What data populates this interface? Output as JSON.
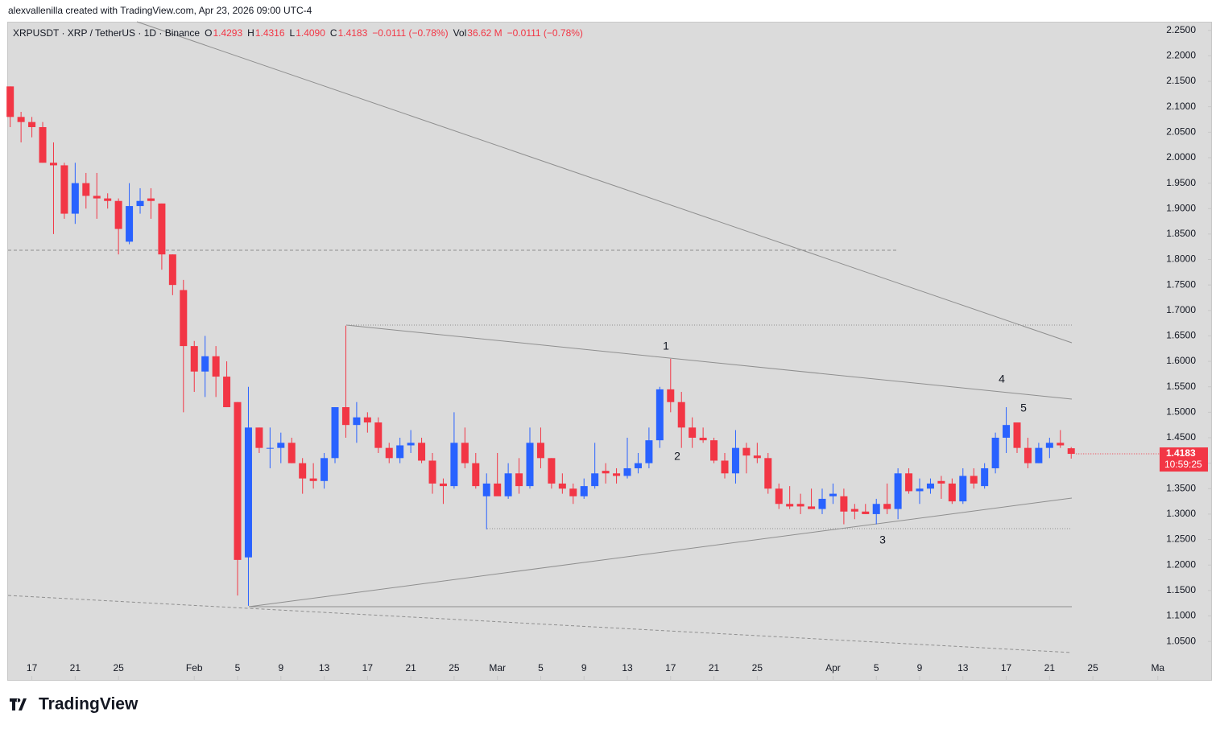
{
  "header": {
    "credit": "alexvallenilla created with TradingView.com, Apr 23, 2026 09:00 UTC-4"
  },
  "footer": {
    "logo": "TradingView"
  },
  "chart_data": {
    "type": "candlestick",
    "legend": {
      "symbol": "XRPUSDT · XRP / TetherUS · 1D · Binance",
      "fields": [
        {
          "key": "O",
          "value": "1.4293"
        },
        {
          "key": "H",
          "value": "1.4316"
        },
        {
          "key": "L",
          "value": "1.4090"
        },
        {
          "key": "C",
          "value": "1.4183"
        },
        {
          "key": "",
          "value": "−0.0111 (−0.78%)"
        },
        {
          "key": "Vol",
          "value": "36.62 M"
        },
        {
          "key": "",
          "value": "−0.0111 (−0.78%)"
        }
      ]
    },
    "up_color": "#2962ff",
    "down_color": "#f23645",
    "candles": {
      "open": [
        2.14,
        2.08,
        2.07,
        2.06,
        1.99,
        1.985,
        1.89,
        1.95,
        1.925,
        1.92,
        1.915,
        1.835,
        1.905,
        1.92,
        1.91,
        1.81,
        1.74,
        1.63,
        1.58,
        1.61,
        1.57,
        1.52,
        1.215,
        1.47,
        1.43,
        1.43,
        1.44,
        1.4,
        1.37,
        1.365,
        1.41,
        1.51,
        1.475,
        1.49,
        1.48,
        1.43,
        1.41,
        1.435,
        1.44,
        1.405,
        1.36,
        1.355,
        1.44,
        1.4,
        1.335,
        1.36,
        1.335,
        1.38,
        1.355,
        1.44,
        1.41,
        1.36,
        1.35,
        1.335,
        1.355,
        1.385,
        1.38,
        1.375,
        1.39,
        1.4,
        1.445,
        1.545,
        1.52,
        1.47,
        1.45,
        1.445,
        1.405,
        1.38,
        1.43,
        1.415,
        1.41,
        1.35,
        1.32,
        1.32,
        1.315,
        1.31,
        1.335,
        1.335,
        1.31,
        1.305,
        1.3,
        1.32,
        1.31,
        1.38,
        1.345,
        1.35,
        1.365,
        1.36,
        1.325,
        1.375,
        1.355,
        1.39,
        1.45,
        1.48,
        1.43,
        1.4,
        1.43,
        1.44,
        1.4293
      ],
      "high": [
        2.14,
        2.09,
        2.08,
        2.07,
        2.03,
        1.99,
        1.99,
        1.97,
        1.97,
        1.93,
        1.92,
        1.95,
        1.94,
        1.94,
        1.91,
        1.81,
        1.76,
        1.64,
        1.65,
        1.63,
        1.6,
        1.52,
        1.55,
        1.47,
        1.47,
        1.46,
        1.45,
        1.41,
        1.4,
        1.42,
        1.51,
        1.67,
        1.52,
        1.5,
        1.49,
        1.44,
        1.45,
        1.465,
        1.45,
        1.42,
        1.37,
        1.5,
        1.47,
        1.42,
        1.38,
        1.42,
        1.4,
        1.41,
        1.47,
        1.47,
        1.41,
        1.38,
        1.36,
        1.37,
        1.44,
        1.4,
        1.39,
        1.45,
        1.42,
        1.47,
        1.55,
        1.605,
        1.54,
        1.49,
        1.47,
        1.45,
        1.42,
        1.465,
        1.44,
        1.44,
        1.42,
        1.36,
        1.355,
        1.34,
        1.35,
        1.35,
        1.36,
        1.35,
        1.32,
        1.32,
        1.33,
        1.36,
        1.39,
        1.39,
        1.37,
        1.37,
        1.375,
        1.37,
        1.39,
        1.39,
        1.4,
        1.46,
        1.51,
        1.48,
        1.45,
        1.44,
        1.45,
        1.465,
        1.4316
      ],
      "low": [
        2.06,
        2.03,
        2.04,
        1.99,
        1.85,
        1.88,
        1.87,
        1.9,
        1.88,
        1.9,
        1.81,
        1.83,
        1.89,
        1.88,
        1.78,
        1.73,
        1.5,
        1.54,
        1.53,
        1.53,
        1.51,
        1.14,
        1.12,
        1.42,
        1.39,
        1.4,
        1.4,
        1.34,
        1.35,
        1.35,
        1.4,
        1.45,
        1.44,
        1.46,
        1.42,
        1.4,
        1.4,
        1.42,
        1.4,
        1.34,
        1.32,
        1.35,
        1.39,
        1.35,
        1.27,
        1.34,
        1.33,
        1.34,
        1.35,
        1.39,
        1.35,
        1.34,
        1.32,
        1.33,
        1.35,
        1.36,
        1.36,
        1.37,
        1.38,
        1.39,
        1.43,
        1.5,
        1.43,
        1.43,
        1.44,
        1.4,
        1.37,
        1.36,
        1.38,
        1.4,
        1.34,
        1.31,
        1.31,
        1.3,
        1.31,
        1.3,
        1.32,
        1.28,
        1.29,
        1.3,
        1.28,
        1.3,
        1.29,
        1.34,
        1.32,
        1.34,
        1.33,
        1.32,
        1.32,
        1.35,
        1.35,
        1.38,
        1.42,
        1.42,
        1.39,
        1.4,
        1.41,
        1.43,
        1.409
      ],
      "close": [
        2.08,
        2.07,
        2.06,
        1.99,
        1.985,
        1.89,
        1.95,
        1.925,
        1.92,
        1.915,
        1.86,
        1.905,
        1.915,
        1.915,
        1.81,
        1.75,
        1.63,
        1.58,
        1.61,
        1.57,
        1.51,
        1.21,
        1.47,
        1.43,
        1.43,
        1.44,
        1.4,
        1.37,
        1.365,
        1.41,
        1.51,
        1.475,
        1.49,
        1.48,
        1.43,
        1.41,
        1.435,
        1.44,
        1.405,
        1.36,
        1.355,
        1.44,
        1.4,
        1.355,
        1.36,
        1.335,
        1.38,
        1.355,
        1.44,
        1.41,
        1.36,
        1.35,
        1.335,
        1.355,
        1.38,
        1.38,
        1.375,
        1.39,
        1.4,
        1.445,
        1.545,
        1.52,
        1.47,
        1.45,
        1.445,
        1.405,
        1.38,
        1.43,
        1.415,
        1.41,
        1.35,
        1.32,
        1.315,
        1.315,
        1.31,
        1.33,
        1.34,
        1.305,
        1.305,
        1.3,
        1.32,
        1.31,
        1.38,
        1.345,
        1.35,
        1.36,
        1.36,
        1.325,
        1.375,
        1.36,
        1.39,
        1.45,
        1.475,
        1.43,
        1.4,
        1.43,
        1.44,
        1.435,
        1.4183
      ]
    },
    "xlim": [
      -0.2,
      111
    ],
    "xticks": [
      {
        "value": 2,
        "label": "17"
      },
      {
        "value": 6,
        "label": "21"
      },
      {
        "value": 10,
        "label": "25"
      },
      {
        "value": 17,
        "label": "Feb"
      },
      {
        "value": 21,
        "label": "5"
      },
      {
        "value": 25,
        "label": "9"
      },
      {
        "value": 29,
        "label": "13"
      },
      {
        "value": 33,
        "label": "17"
      },
      {
        "value": 37,
        "label": "21"
      },
      {
        "value": 41,
        "label": "25"
      },
      {
        "value": 45,
        "label": "Mar"
      },
      {
        "value": 49,
        "label": "5"
      },
      {
        "value": 53,
        "label": "9"
      },
      {
        "value": 57,
        "label": "13"
      },
      {
        "value": 61,
        "label": "17"
      },
      {
        "value": 65,
        "label": "21"
      },
      {
        "value": 69,
        "label": "25"
      },
      {
        "value": 76,
        "label": "Apr"
      },
      {
        "value": 80,
        "label": "5"
      },
      {
        "value": 84,
        "label": "9"
      },
      {
        "value": 88,
        "label": "13"
      },
      {
        "value": 92,
        "label": "17"
      },
      {
        "value": 96,
        "label": "21"
      },
      {
        "value": 100,
        "label": "25"
      },
      {
        "value": 106,
        "label": "Ma"
      }
    ],
    "ylim": [
      1.017,
      2.267
    ],
    "yticks": [
      {
        "value": 1.05,
        "label": "1.0500"
      },
      {
        "value": 1.1,
        "label": "1.1000"
      },
      {
        "value": 1.15,
        "label": "1.1500"
      },
      {
        "value": 1.2,
        "label": "1.2000"
      },
      {
        "value": 1.25,
        "label": "1.2500"
      },
      {
        "value": 1.3,
        "label": "1.3000"
      },
      {
        "value": 1.35,
        "label": "1.3500"
      },
      {
        "value": 1.4,
        "label": "1.4000"
      },
      {
        "value": 1.45,
        "label": "1.4500"
      },
      {
        "value": 1.5,
        "label": "1.5000"
      },
      {
        "value": 1.55,
        "label": "1.5500"
      },
      {
        "value": 1.6,
        "label": "1.6000"
      },
      {
        "value": 1.65,
        "label": "1.6500"
      },
      {
        "value": 1.7,
        "label": "1.7000"
      },
      {
        "value": 1.75,
        "label": "1.7500"
      },
      {
        "value": 1.8,
        "label": "1.8000"
      },
      {
        "value": 1.85,
        "label": "1.8500"
      },
      {
        "value": 1.9,
        "label": "1.9000"
      },
      {
        "value": 1.95,
        "label": "1.9500"
      },
      {
        "value": 2.0,
        "label": "2.0000"
      },
      {
        "value": 2.05,
        "label": "2.0500"
      },
      {
        "value": 2.1,
        "label": "2.1000"
      },
      {
        "value": 2.15,
        "label": "2.1500"
      },
      {
        "value": 2.2,
        "label": "2.2000"
      },
      {
        "value": 2.25,
        "label": "2.2500"
      }
    ],
    "grid": false,
    "price_tag": {
      "value": 1.4183,
      "countdown": "10:59:25"
    },
    "wave_labels": [
      "1",
      "2",
      "3",
      "4",
      "5"
    ]
  }
}
